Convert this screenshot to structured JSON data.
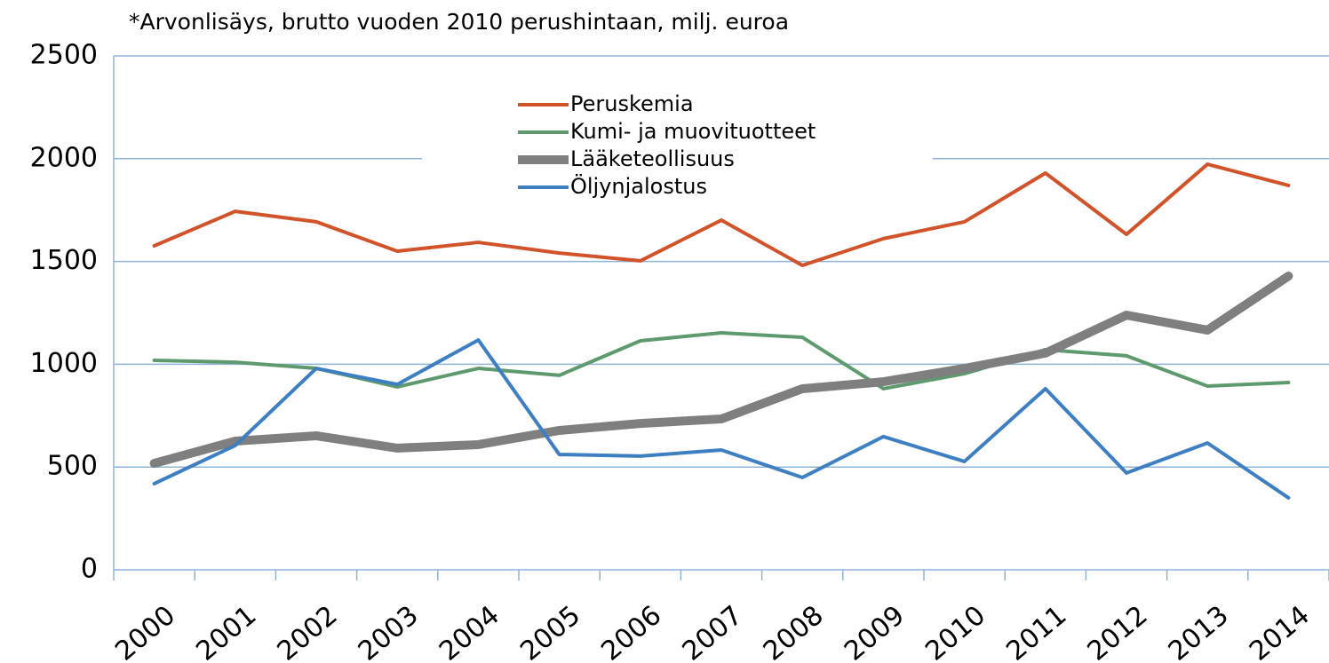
{
  "chart_data": {
    "type": "line",
    "title": "*Arvonlisäys, brutto vuoden 2010 perushintaan, milj. euroa",
    "categories": [
      "2000",
      "2001",
      "2002",
      "2003",
      "2004",
      "2005",
      "2006",
      "2007",
      "2008",
      "2009",
      "2010",
      "2011",
      "2012",
      "2013",
      "2014"
    ],
    "series": [
      {
        "name": "Peruskemia",
        "color": "#d2522a",
        "width": 4,
        "values": [
          1576,
          1744,
          1693,
          1550,
          1593,
          1541,
          1503,
          1701,
          1481,
          1611,
          1693,
          1930,
          1632,
          1973,
          1870
        ]
      },
      {
        "name": "Kumi- ja muovituotteet",
        "color": "#5e9a6e",
        "width": 4,
        "values": [
          1019,
          1010,
          980,
          890,
          980,
          946,
          1114,
          1153,
          1131,
          881,
          954,
          1071,
          1041,
          894,
          911
        ]
      },
      {
        "name": "Lääketeollisuus",
        "color": "#7f7f7f",
        "width": 10,
        "values": [
          518,
          626,
          652,
          592,
          609,
          678,
          712,
          734,
          881,
          915,
          980,
          1054,
          1239,
          1166,
          1429
        ]
      },
      {
        "name": "Öljynjalostus",
        "color": "#3d7fc2",
        "width": 4,
        "values": [
          419,
          605,
          980,
          902,
          1118,
          561,
          553,
          583,
          449,
          648,
          527,
          881,
          471,
          617,
          350
        ]
      }
    ],
    "ylim": [
      0,
      2500
    ],
    "yticks": [
      0,
      500,
      1000,
      1500,
      2000,
      2500
    ],
    "grid": true
  }
}
